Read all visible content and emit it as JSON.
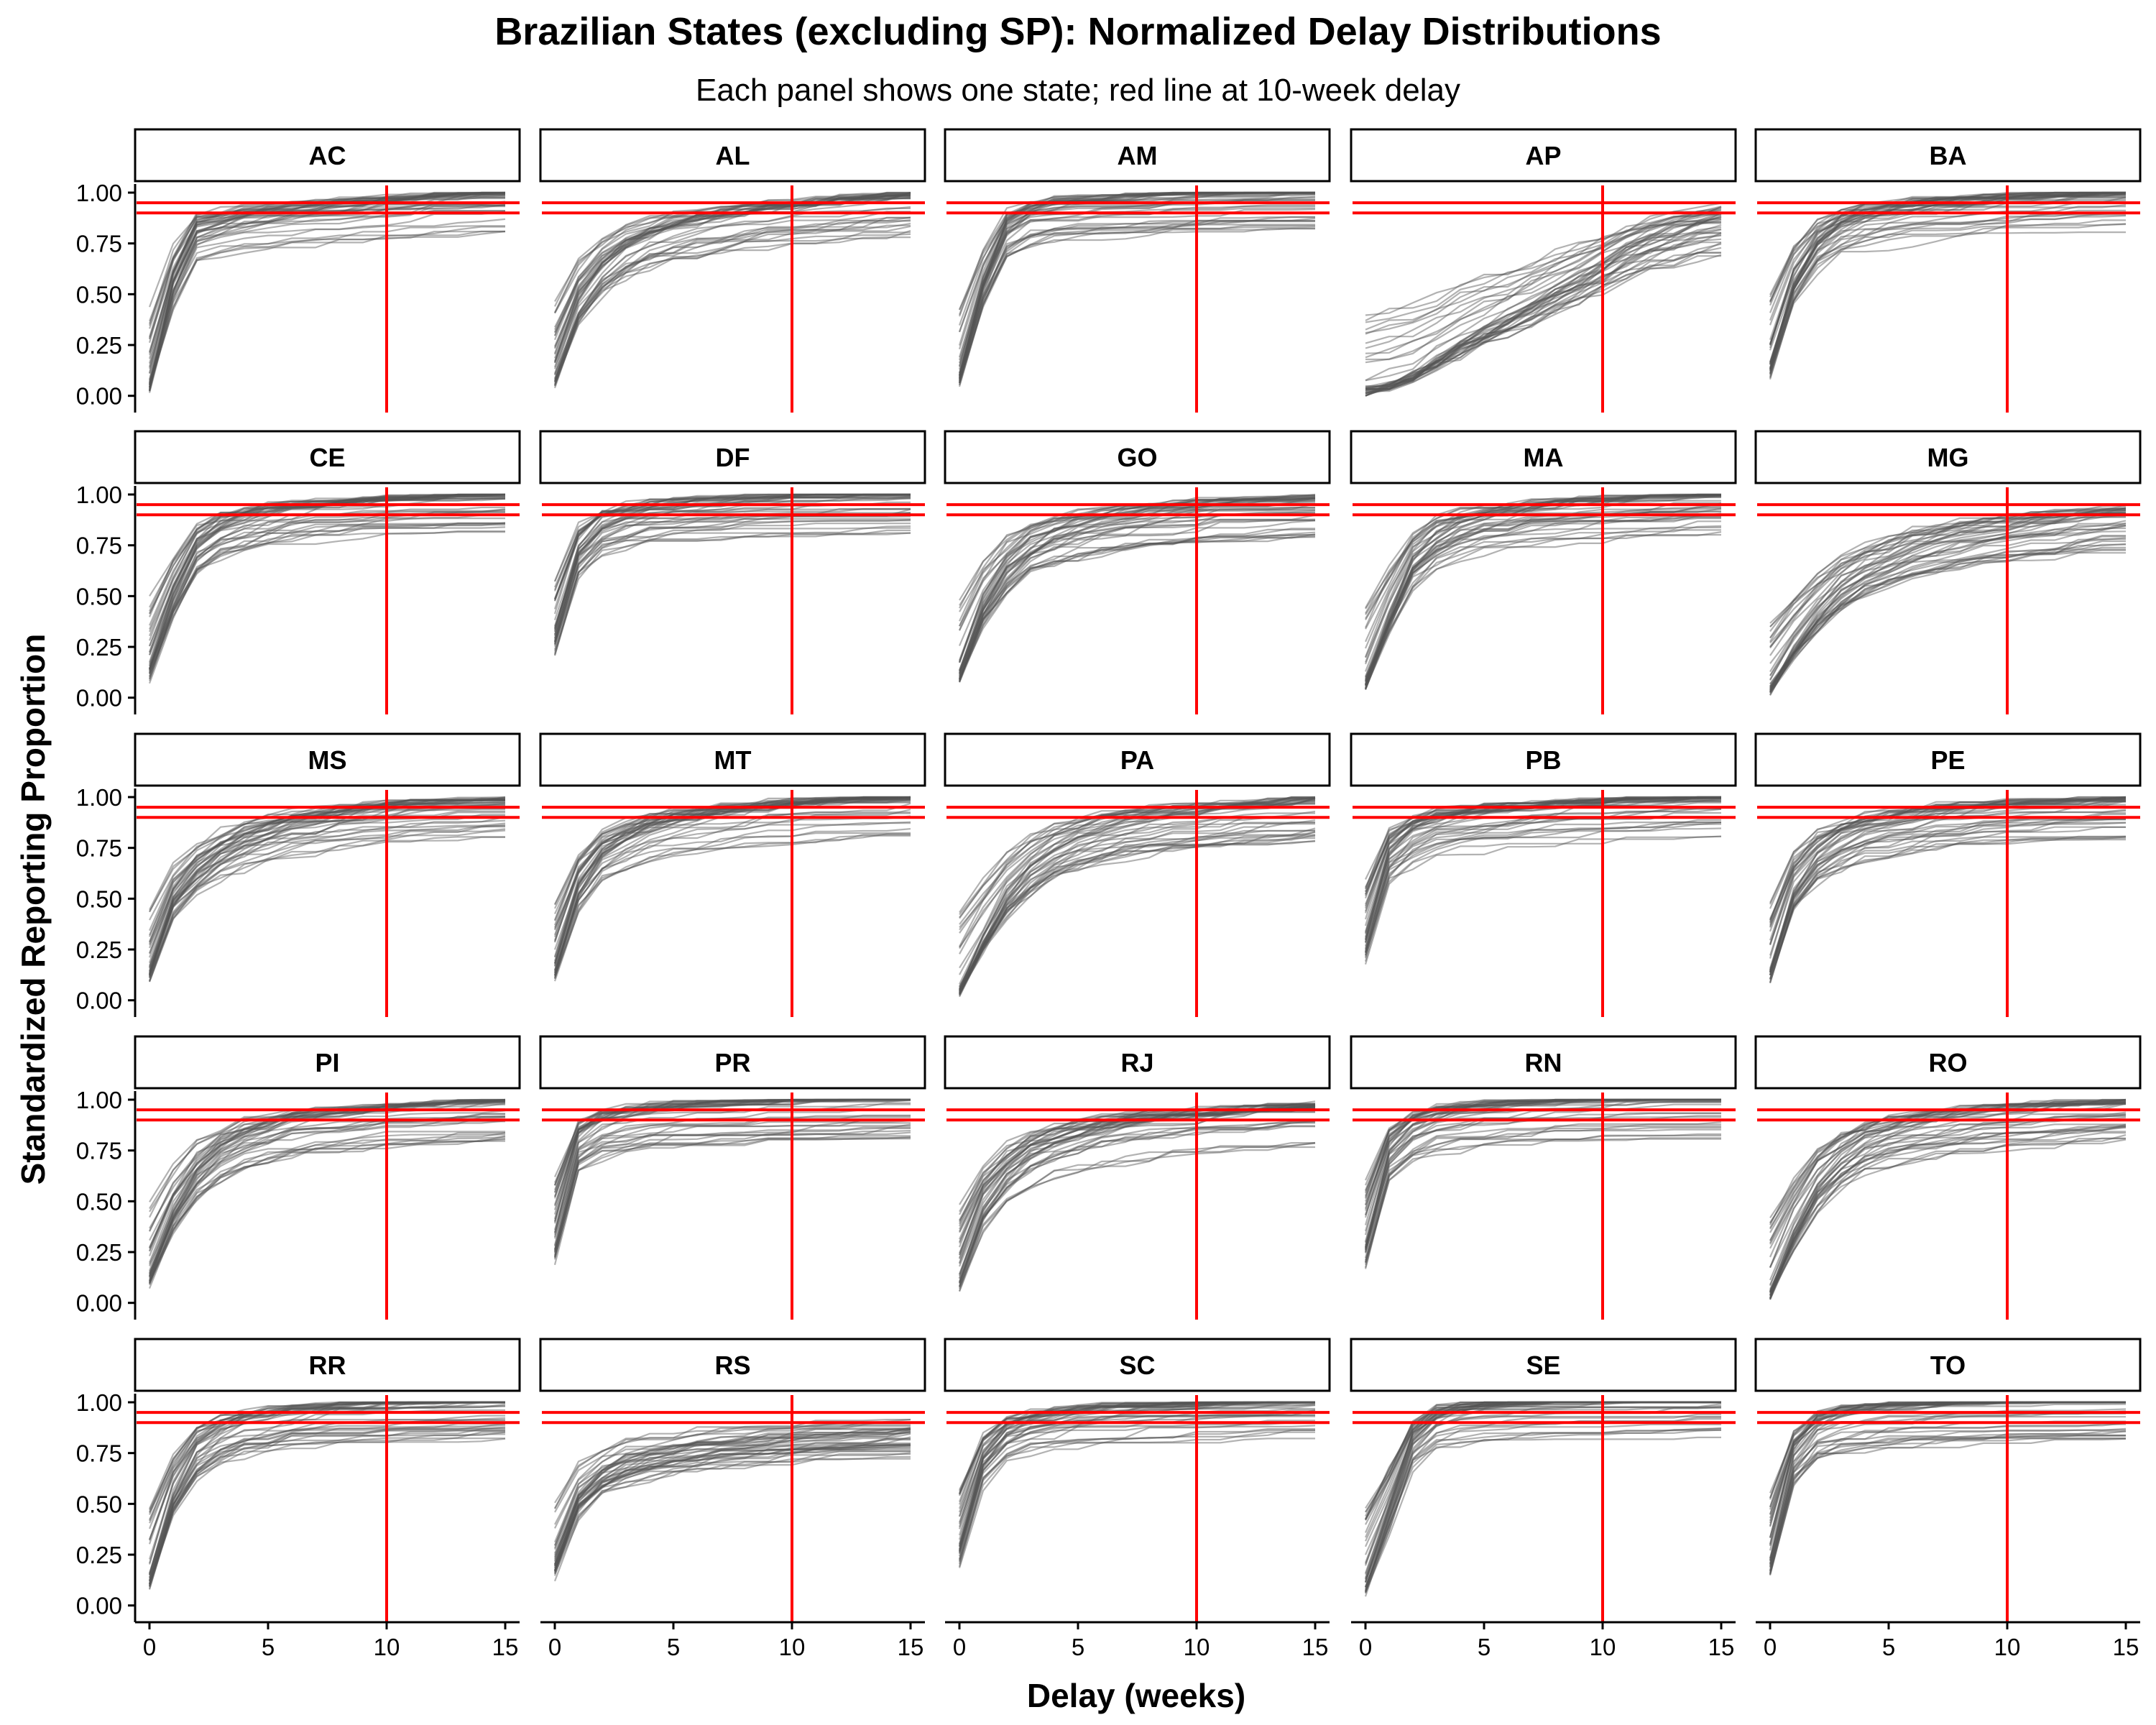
{
  "colors": {
    "curve": "#555555",
    "reference": "#ff0000",
    "axis": "#000000",
    "strip_border": "#000000",
    "background": "#ffffff"
  },
  "chart_data": {
    "type": "line",
    "title": "Brazilian States (excluding SP): Normalized Delay Distributions",
    "subtitle": "Each panel shows one state; red line at 10-week delay",
    "xlabel": "Delay (weeks)",
    "ylabel": "Standardized Reporting Proportion",
    "xlim": [
      0,
      15
    ],
    "ylim": [
      0,
      1
    ],
    "xticks": [
      0,
      5,
      10,
      15
    ],
    "xtick_labels": [
      "0",
      "5",
      "10",
      "15"
    ],
    "yticks": [
      0,
      0.25,
      0.5,
      0.75,
      1
    ],
    "ytick_labels": [
      "0.00",
      "0.25",
      "0.50",
      "0.75",
      "1.00"
    ],
    "layout": "facet grid 5 columns x 5 rows",
    "grid": false,
    "reference_lines": {
      "vertical_x": 10,
      "horizontal_y": [
        0.9,
        0.95
      ]
    },
    "curves_per_panel": 40,
    "panels": [
      {
        "state": "AC",
        "mean_curve": [
          0.05,
          0.55,
          0.82,
          0.86,
          0.88,
          0.9,
          0.91,
          0.92,
          0.93,
          0.94,
          0.95,
          0.96,
          0.97,
          0.97,
          0.98,
          0.98
        ]
      },
      {
        "state": "AL",
        "mean_curve": [
          0.1,
          0.45,
          0.62,
          0.72,
          0.78,
          0.82,
          0.85,
          0.87,
          0.9,
          0.91,
          0.92,
          0.94,
          0.95,
          0.96,
          0.97,
          0.98
        ]
      },
      {
        "state": "AM",
        "mean_curve": [
          0.1,
          0.55,
          0.85,
          0.92,
          0.94,
          0.95,
          0.96,
          0.97,
          0.97,
          0.98,
          0.98,
          0.98,
          0.99,
          0.99,
          0.99,
          0.99
        ]
      },
      {
        "state": "AP",
        "mean_curve": [
          0.02,
          0.05,
          0.1,
          0.18,
          0.25,
          0.32,
          0.38,
          0.45,
          0.52,
          0.58,
          0.65,
          0.72,
          0.78,
          0.82,
          0.85,
          0.88
        ]
      },
      {
        "state": "BA",
        "mean_curve": [
          0.15,
          0.55,
          0.75,
          0.85,
          0.89,
          0.91,
          0.93,
          0.94,
          0.95,
          0.96,
          0.97,
          0.97,
          0.98,
          0.98,
          0.98,
          0.99
        ]
      },
      {
        "state": "CE",
        "mean_curve": [
          0.15,
          0.5,
          0.75,
          0.84,
          0.88,
          0.91,
          0.93,
          0.94,
          0.95,
          0.96,
          0.96,
          0.97,
          0.97,
          0.98,
          0.98,
          0.98
        ]
      },
      {
        "state": "DF",
        "mean_curve": [
          0.35,
          0.75,
          0.88,
          0.92,
          0.94,
          0.95,
          0.96,
          0.96,
          0.97,
          0.97,
          0.98,
          0.98,
          0.98,
          0.98,
          0.99,
          0.99
        ]
      },
      {
        "state": "GO",
        "mean_curve": [
          0.12,
          0.45,
          0.65,
          0.76,
          0.82,
          0.86,
          0.88,
          0.9,
          0.92,
          0.93,
          0.94,
          0.95,
          0.95,
          0.96,
          0.96,
          0.97
        ]
      },
      {
        "state": "MA",
        "mean_curve": [
          0.08,
          0.4,
          0.68,
          0.8,
          0.86,
          0.89,
          0.91,
          0.93,
          0.94,
          0.95,
          0.96,
          0.96,
          0.97,
          0.97,
          0.98,
          0.98
        ]
      },
      {
        "state": "MG",
        "mean_curve": [
          0.05,
          0.25,
          0.42,
          0.54,
          0.62,
          0.68,
          0.73,
          0.76,
          0.79,
          0.81,
          0.83,
          0.85,
          0.86,
          0.88,
          0.89,
          0.9
        ]
      },
      {
        "state": "MS",
        "mean_curve": [
          0.15,
          0.5,
          0.65,
          0.74,
          0.8,
          0.85,
          0.88,
          0.9,
          0.92,
          0.94,
          0.95,
          0.96,
          0.96,
          0.97,
          0.97,
          0.98
        ]
      },
      {
        "state": "MT",
        "mean_curve": [
          0.15,
          0.55,
          0.72,
          0.8,
          0.85,
          0.88,
          0.9,
          0.92,
          0.93,
          0.95,
          0.96,
          0.97,
          0.97,
          0.98,
          0.98,
          0.99
        ]
      },
      {
        "state": "PA",
        "mean_curve": [
          0.05,
          0.3,
          0.52,
          0.66,
          0.75,
          0.81,
          0.85,
          0.88,
          0.9,
          0.92,
          0.93,
          0.94,
          0.95,
          0.96,
          0.97,
          0.98
        ]
      },
      {
        "state": "PB",
        "mean_curve": [
          0.3,
          0.72,
          0.83,
          0.88,
          0.9,
          0.92,
          0.93,
          0.94,
          0.95,
          0.96,
          0.96,
          0.97,
          0.97,
          0.98,
          0.98,
          0.98
        ]
      },
      {
        "state": "PE",
        "mean_curve": [
          0.15,
          0.55,
          0.72,
          0.8,
          0.85,
          0.88,
          0.9,
          0.92,
          0.93,
          0.94,
          0.95,
          0.96,
          0.96,
          0.97,
          0.97,
          0.98
        ]
      },
      {
        "state": "PI",
        "mean_curve": [
          0.15,
          0.45,
          0.65,
          0.76,
          0.83,
          0.87,
          0.9,
          0.92,
          0.93,
          0.94,
          0.95,
          0.96,
          0.96,
          0.97,
          0.97,
          0.98
        ]
      },
      {
        "state": "PR",
        "mean_curve": [
          0.35,
          0.82,
          0.9,
          0.93,
          0.95,
          0.96,
          0.96,
          0.97,
          0.97,
          0.98,
          0.98,
          0.98,
          0.98,
          0.99,
          0.99,
          0.99
        ]
      },
      {
        "state": "RJ",
        "mean_curve": [
          0.12,
          0.45,
          0.62,
          0.72,
          0.78,
          0.82,
          0.85,
          0.87,
          0.89,
          0.9,
          0.91,
          0.92,
          0.93,
          0.94,
          0.95,
          0.95
        ]
      },
      {
        "state": "RN",
        "mean_curve": [
          0.3,
          0.75,
          0.88,
          0.93,
          0.95,
          0.96,
          0.97,
          0.97,
          0.98,
          0.98,
          0.98,
          0.99,
          0.99,
          0.99,
          0.99,
          0.99
        ]
      },
      {
        "state": "RO",
        "mean_curve": [
          0.05,
          0.35,
          0.58,
          0.72,
          0.8,
          0.85,
          0.88,
          0.9,
          0.92,
          0.93,
          0.94,
          0.95,
          0.96,
          0.97,
          0.97,
          0.98
        ]
      },
      {
        "state": "RR",
        "mean_curve": [
          0.15,
          0.55,
          0.78,
          0.87,
          0.91,
          0.93,
          0.95,
          0.96,
          0.97,
          0.97,
          0.98,
          0.98,
          0.98,
          0.99,
          0.99,
          0.99
        ]
      },
      {
        "state": "RS",
        "mean_curve": [
          0.2,
          0.52,
          0.64,
          0.7,
          0.73,
          0.75,
          0.77,
          0.78,
          0.79,
          0.8,
          0.81,
          0.82,
          0.82,
          0.83,
          0.83,
          0.84
        ]
      },
      {
        "state": "SC",
        "mean_curve": [
          0.3,
          0.72,
          0.86,
          0.91,
          0.93,
          0.95,
          0.96,
          0.96,
          0.97,
          0.97,
          0.98,
          0.98,
          0.98,
          0.99,
          0.99,
          0.99
        ]
      },
      {
        "state": "SE",
        "mean_curve": [
          0.1,
          0.45,
          0.82,
          0.94,
          0.97,
          0.98,
          0.98,
          0.98,
          0.99,
          0.99,
          0.99,
          0.99,
          0.99,
          1.0,
          1.0,
          1.0
        ]
      },
      {
        "state": "TO",
        "mean_curve": [
          0.25,
          0.75,
          0.9,
          0.94,
          0.96,
          0.97,
          0.97,
          0.98,
          0.98,
          0.98,
          0.99,
          0.99,
          0.99,
          0.99,
          0.99,
          1.0
        ]
      }
    ]
  }
}
